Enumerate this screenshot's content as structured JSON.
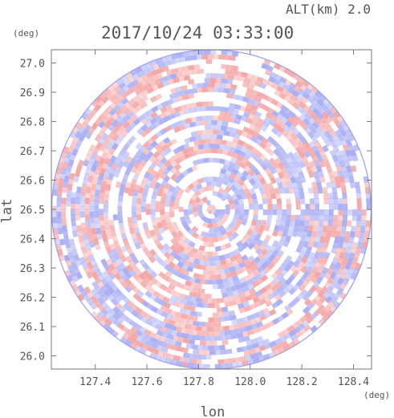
{
  "header": {
    "altitude_label": "ALT(km) 2.0",
    "timestamp": "2017/10/24 03:33:00"
  },
  "chart_data": {
    "type": "heatmap",
    "title": "2017/10/24 03:33:00",
    "subtitle": "ALT(km) 2.0",
    "xlabel": "lon",
    "ylabel": "lat",
    "x_unit": "(deg)",
    "y_unit": "(deg)",
    "xlim": [
      127.23,
      128.47
    ],
    "ylim": [
      25.955,
      27.045
    ],
    "x_ticks": [
      "127.4",
      "127.6",
      "127.8",
      "128.0",
      "128.2",
      "128.4"
    ],
    "y_ticks": [
      "26.0",
      "26.1",
      "26.2",
      "26.3",
      "26.4",
      "26.5",
      "26.6",
      "26.7",
      "26.8",
      "26.9",
      "27.0"
    ],
    "grid": false,
    "center": {
      "lon": 127.85,
      "lat": 26.5
    },
    "radius_deg_lat": 0.545,
    "colors": {
      "positive": "#f4a6a6",
      "negative": "#a9aef4",
      "neutral": "#ffffff",
      "text": "#555555"
    }
  }
}
